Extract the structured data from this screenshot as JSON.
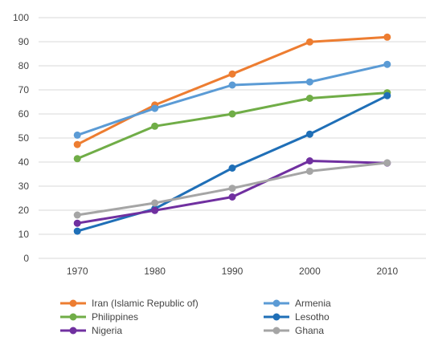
{
  "chart_data": {
    "type": "line",
    "x": [
      "1970",
      "1980",
      "1990",
      "2000",
      "2010"
    ],
    "ylim": [
      0,
      100
    ],
    "yticks": [
      0,
      10,
      20,
      30,
      40,
      50,
      60,
      70,
      80,
      90,
      100
    ],
    "grid": "horizontal",
    "legend_position": "bottom",
    "series": [
      {
        "name": "Iran (Islamic Republic of)",
        "color": "#ED7D31",
        "values": [
          47.3,
          63.7,
          76.6,
          89.9,
          91.9
        ]
      },
      {
        "name": "Armenia",
        "color": "#5B9BD5",
        "values": [
          51.2,
          62.3,
          72.0,
          73.3,
          80.6
        ]
      },
      {
        "name": "Philippines",
        "color": "#70AD47",
        "values": [
          41.4,
          54.9,
          60.0,
          66.5,
          68.8
        ]
      },
      {
        "name": "Lesotho",
        "color": "#1F6FB7",
        "values": [
          11.3,
          20.6,
          37.5,
          51.6,
          67.6
        ]
      },
      {
        "name": "Nigeria",
        "color": "#7030A0",
        "values": [
          14.6,
          19.9,
          25.5,
          40.5,
          39.6
        ]
      },
      {
        "name": "Ghana",
        "color": "#A5A5A5",
        "values": [
          18.0,
          23.0,
          29.1,
          36.2,
          39.7
        ]
      }
    ]
  }
}
